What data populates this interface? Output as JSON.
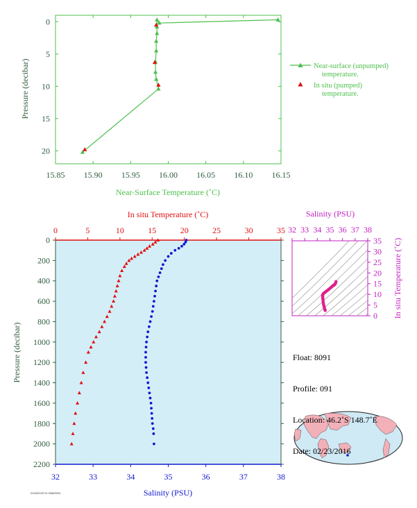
{
  "chart_data": [
    {
      "type": "line",
      "xlabel": "Near-Surface Temperature (˚C)",
      "ylabel": "Pressure (decibar)",
      "xlim": [
        15.85,
        16.15
      ],
      "ylim": [
        22,
        -1
      ],
      "xticks": [
        "15.85",
        "15.90",
        "15.95",
        "16.00",
        "16.05",
        "16.10",
        "16.15"
      ],
      "yticks": [
        "0",
        "5",
        "10",
        "15",
        "20"
      ],
      "legend_position": "right",
      "colors": {
        "unpumped": "#4cbf4c",
        "pumped": "#e01010",
        "axis": "#4cbf4c"
      },
      "series": [
        {
          "name": "Near-surface (unpumped) temperature.",
          "type": "line-markers",
          "points": [
            [
              16.146,
              -0.3
            ],
            [
              15.988,
              0.2
            ],
            [
              15.985,
              -0.3
            ],
            [
              15.985,
              0.8
            ],
            [
              15.985,
              1.8
            ],
            [
              15.984,
              3.0
            ],
            [
              15.984,
              4.5
            ],
            [
              15.983,
              6.2
            ],
            [
              15.983,
              7.8
            ],
            [
              15.984,
              8.9
            ],
            [
              15.987,
              10.4
            ],
            [
              15.886,
              20.2
            ]
          ]
        },
        {
          "name": "In situ (pumped) temperature.",
          "type": "markers",
          "points": [
            [
              15.984,
              0.5
            ],
            [
              15.982,
              6.3
            ],
            [
              15.987,
              9.8
            ],
            [
              15.889,
              19.8
            ]
          ]
        }
      ]
    },
    {
      "type": "scatter",
      "title": "",
      "top_xlabel": "In situ Temperature (˚C)",
      "bottom_xlabel": "Salinity (PSU)",
      "ylabel": "Pressure (decibar)",
      "temp_xlim": [
        0,
        35
      ],
      "sal_xlim": [
        32,
        38
      ],
      "ylim": [
        2200,
        0
      ],
      "temp_ticks": [
        "0",
        "5",
        "10",
        "15",
        "20",
        "25",
        "30",
        "35"
      ],
      "sal_ticks": [
        "32",
        "33",
        "34",
        "35",
        "36",
        "37",
        "38"
      ],
      "yticks": [
        "0",
        "200",
        "400",
        "600",
        "800",
        "1000",
        "1200",
        "1400",
        "1600",
        "1800",
        "2000",
        "2200"
      ],
      "colors": {
        "temperature": "#e01010",
        "salinity": "#1018d0",
        "plot_bg": "#d4eef8",
        "axis": "#2e5b3c"
      },
      "series": [
        {
          "name": "In situ Temperature",
          "x": [
            15.9,
            15.5,
            15.1,
            14.6,
            14.2,
            13.8,
            13.3,
            12.8,
            12.3,
            11.8,
            11.4,
            11.0,
            10.7,
            10.3,
            10.0,
            9.8,
            9.6,
            9.4,
            9.2,
            9.0,
            8.7,
            8.4,
            8.0,
            7.6,
            7.2,
            6.8,
            6.3,
            5.9,
            5.5,
            5.1,
            4.7,
            4.3,
            4.0,
            3.7,
            3.4,
            3.1,
            2.9,
            2.7,
            2.5
          ],
          "y": [
            0,
            20,
            40,
            60,
            80,
            100,
            120,
            140,
            160,
            180,
            200,
            230,
            260,
            300,
            350,
            400,
            450,
            500,
            550,
            600,
            650,
            700,
            750,
            800,
            850,
            900,
            950,
            1000,
            1050,
            1100,
            1200,
            1300,
            1400,
            1500,
            1600,
            1700,
            1800,
            1900,
            2000
          ]
        },
        {
          "name": "Salinity",
          "x": [
            35.48,
            35.46,
            35.42,
            35.36,
            35.28,
            35.18,
            35.08,
            35.0,
            34.92,
            34.86,
            34.82,
            34.78,
            34.74,
            34.7,
            34.68,
            34.66,
            34.64,
            34.62,
            34.6,
            34.58,
            34.55,
            34.52,
            34.49,
            34.46,
            34.44,
            34.42,
            34.41,
            34.4,
            34.4,
            34.4,
            34.41,
            34.42,
            34.44,
            34.46,
            34.48,
            34.5,
            34.52,
            34.54,
            34.55,
            34.56,
            34.57,
            34.58,
            34.6,
            34.61,
            34.62
          ],
          "y": [
            0,
            20,
            40,
            60,
            80,
            100,
            130,
            160,
            200,
            240,
            280,
            320,
            360,
            400,
            450,
            500,
            550,
            600,
            650,
            700,
            750,
            800,
            850,
            900,
            950,
            1000,
            1050,
            1100,
            1150,
            1200,
            1250,
            1300,
            1350,
            1400,
            1450,
            1500,
            1550,
            1600,
            1650,
            1700,
            1750,
            1800,
            1850,
            1900,
            2000
          ]
        }
      ]
    },
    {
      "type": "scatter",
      "top_xlabel": "Salinity (PSU)",
      "right_ylabel": "In situ Temperature (˚C)",
      "xlim": [
        32,
        38
      ],
      "ylim": [
        0,
        35
      ],
      "xticks": [
        "32",
        "33",
        "34",
        "35",
        "36",
        "37",
        "38"
      ],
      "yticks": [
        "0",
        "5",
        "10",
        "15",
        "20",
        "25",
        "30",
        "35"
      ],
      "colors": {
        "points": "#e0208a",
        "axis": "#c020c0",
        "contours": "#8a8a8a"
      },
      "series": [
        {
          "name": "T-S",
          "x": [
            34.62,
            34.6,
            34.57,
            34.55,
            34.52,
            34.49,
            34.47,
            34.45,
            34.44,
            34.43,
            34.42,
            34.42,
            34.44,
            34.48,
            34.55,
            34.62,
            34.7,
            34.8,
            34.9,
            35.0,
            35.1,
            35.2,
            35.3,
            35.38,
            35.44,
            35.48
          ],
          "y": [
            2.5,
            2.9,
            3.4,
            4.0,
            4.7,
            5.5,
            6.3,
            7.2,
            8.0,
            8.7,
            9.2,
            9.6,
            10.0,
            10.3,
            10.7,
            11.0,
            11.4,
            11.8,
            12.3,
            12.8,
            13.3,
            13.8,
            14.2,
            14.6,
            15.1,
            15.9
          ]
        }
      ]
    }
  ],
  "info": {
    "float": "Float: 8091",
    "profile": "Profile: 091",
    "location": "Location: 46.2˚S 148.7˚E",
    "date": "Date: 02/23/2016"
  },
  "map": {
    "location_marker": "46.2˚S 148.7˚E",
    "land_color": "#f2b0b8",
    "ocean_color": "#cfe9f5"
  },
  "footer_code": "20160223T11 0066S091"
}
